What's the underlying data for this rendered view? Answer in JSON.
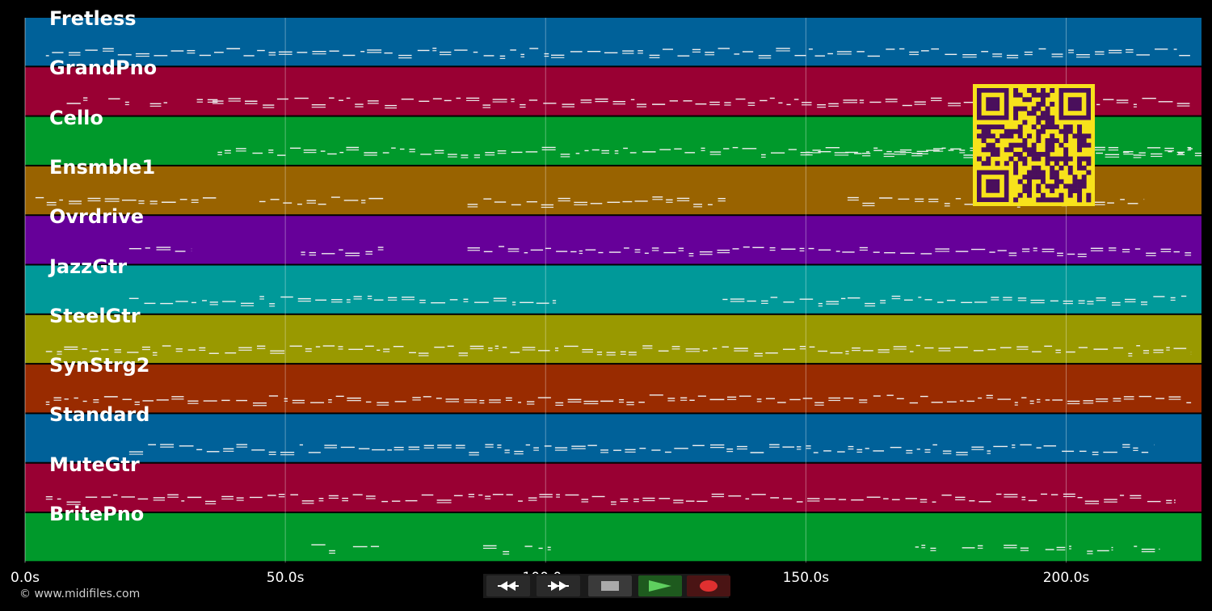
{
  "tracks": [
    {
      "name": "Fretless",
      "color": "#006199"
    },
    {
      "name": "GrandPno",
      "color": "#990033"
    },
    {
      "name": "Cello",
      "color": "#00992b"
    },
    {
      "name": "Ensmble1",
      "color": "#996300"
    },
    {
      "name": "Ovrdrive",
      "color": "#660099"
    },
    {
      "name": "JazzGtr",
      "color": "#009999"
    },
    {
      "name": "SteelGtr",
      "color": "#999900"
    },
    {
      "name": "SynStrg2",
      "color": "#992b00"
    },
    {
      "name": "Standard",
      "color": "#006199"
    },
    {
      "name": "MuteGtr",
      "color": "#990033"
    },
    {
      "name": "BritePno",
      "color": "#00992b"
    }
  ],
  "timeline": {
    "ticks": [
      "0.0s",
      "50.0s",
      "100.0s",
      "150.0s",
      "200.0s"
    ],
    "tick_seconds": [
      0,
      50,
      100,
      150,
      200
    ],
    "max_seconds": 226
  },
  "transport": {
    "rewind_icon": "rewind-icon",
    "forward_icon": "fast-forward-icon",
    "stop_icon": "stop-icon",
    "play_icon": "play-icon",
    "record_icon": "record-icon"
  },
  "qr_icon": "qr-code-icon",
  "copyright": "© www.midifiles.com"
}
